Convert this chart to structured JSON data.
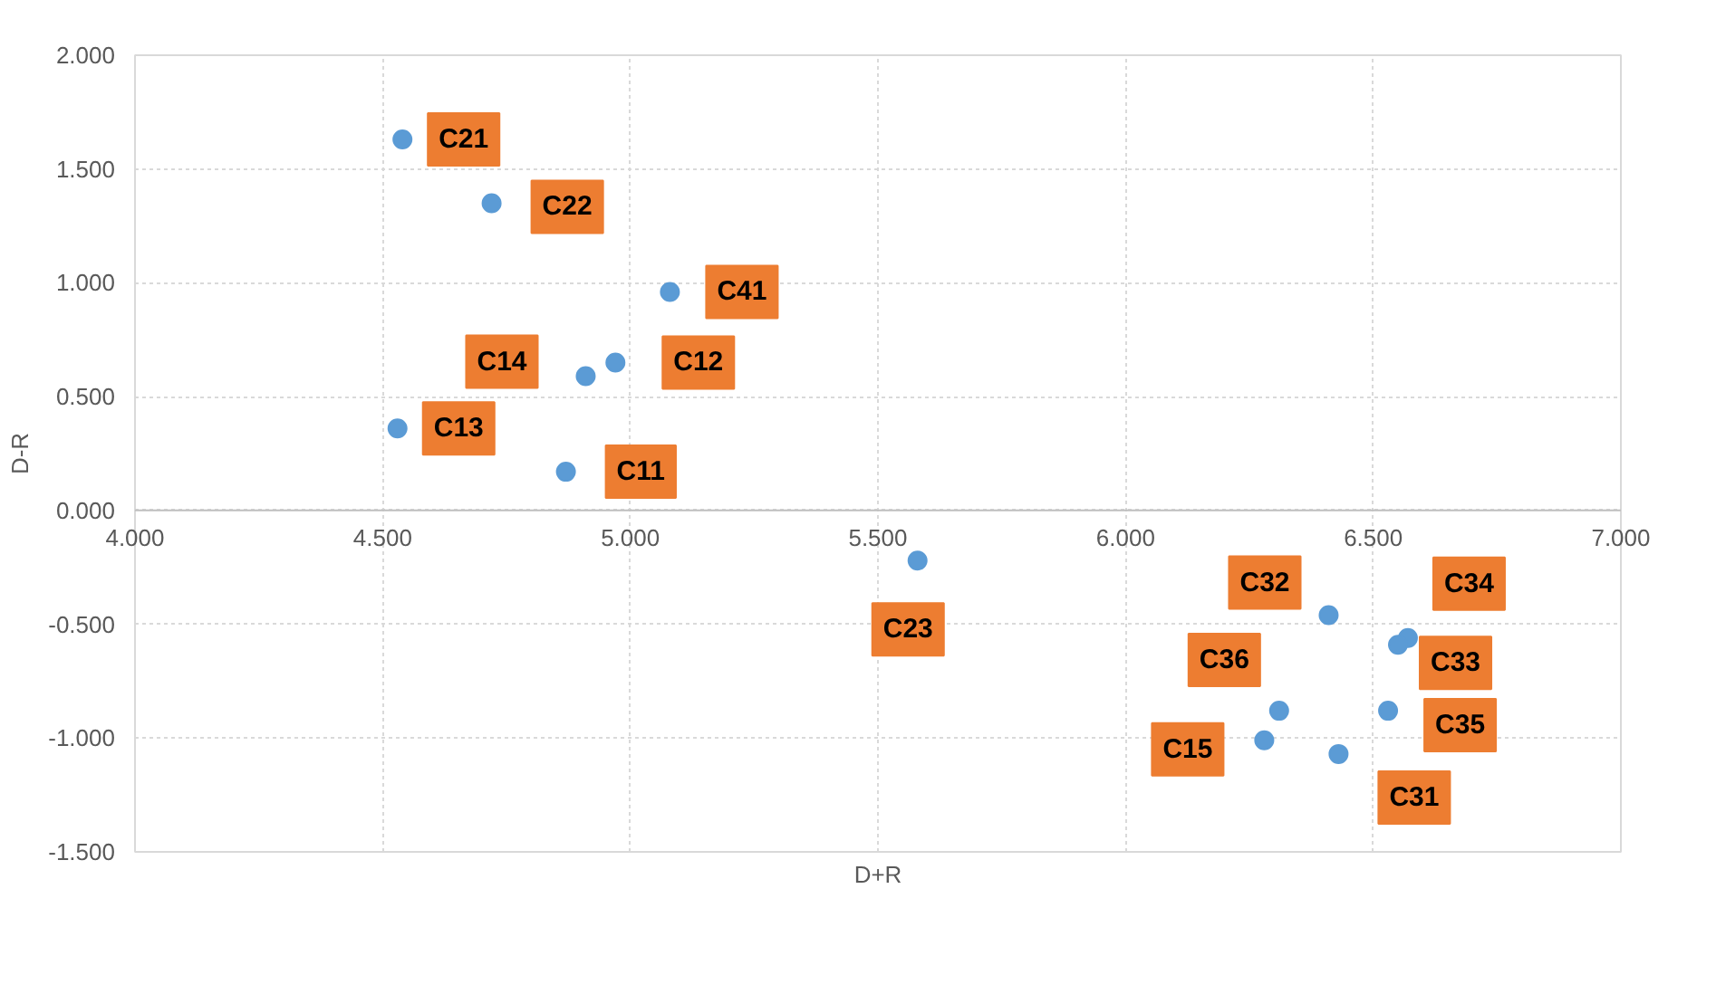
{
  "chart_data": {
    "type": "scatter",
    "xlabel": "D+R",
    "ylabel": "D-R",
    "x": [
      4.54,
      4.72,
      5.08,
      4.91,
      4.97,
      4.53,
      4.87,
      5.58,
      6.41,
      6.57,
      6.55,
      6.31,
      6.53,
      6.28,
      6.43
    ],
    "series": [
      {
        "color": "#5b9bd5",
        "values": [
          1.63,
          1.35,
          0.96,
          0.59,
          0.65,
          0.36,
          0.17,
          -0.22,
          -0.46,
          -0.56,
          -0.59,
          -0.88,
          -0.88,
          -1.01,
          -1.07
        ]
      }
    ],
    "annotations": [
      {
        "text": "C21",
        "x": 4.54,
        "y": 1.63
      },
      {
        "text": "C22",
        "x": 4.72,
        "y": 1.35
      },
      {
        "text": "C41",
        "x": 5.08,
        "y": 0.96
      },
      {
        "text": "C14",
        "x": 4.91,
        "y": 0.59
      },
      {
        "text": "C12",
        "x": 4.97,
        "y": 0.65
      },
      {
        "text": "C13",
        "x": 4.53,
        "y": 0.36
      },
      {
        "text": "C11",
        "x": 4.87,
        "y": 0.17
      },
      {
        "text": "C23",
        "x": 5.58,
        "y": -0.22
      },
      {
        "text": "C32",
        "x": 6.41,
        "y": -0.46
      },
      {
        "text": "C34",
        "x": 6.57,
        "y": -0.56
      },
      {
        "text": "C33",
        "x": 6.55,
        "y": -0.59
      },
      {
        "text": "C36",
        "x": 6.31,
        "y": -0.88
      },
      {
        "text": "C35",
        "x": 6.53,
        "y": -0.88
      },
      {
        "text": "C15",
        "x": 6.28,
        "y": -1.01
      },
      {
        "text": "C31",
        "x": 6.43,
        "y": -1.07
      }
    ],
    "xlim": [
      4,
      7
    ],
    "ylim": [
      -1.5,
      2
    ],
    "xticks": [
      {
        "value": 4,
        "label": "4.000"
      },
      {
        "value": 4.5,
        "label": "4.500"
      },
      {
        "value": 5,
        "label": "5.000"
      },
      {
        "value": 5.5,
        "label": "5.500"
      },
      {
        "value": 6,
        "label": "6.000"
      },
      {
        "value": 6.5,
        "label": "6.500"
      },
      {
        "value": 7,
        "label": "7.000"
      }
    ],
    "yticks": [
      {
        "value": 2,
        "label": "2.000"
      },
      {
        "value": 1.5,
        "label": "1.500"
      },
      {
        "value": 1,
        "label": "1.000"
      },
      {
        "value": 0.5,
        "label": "0.500"
      },
      {
        "value": 0,
        "label": "0.000"
      },
      {
        "value": -0.5,
        "label": "-0.500"
      },
      {
        "value": -1,
        "label": "-1.000"
      },
      {
        "value": -1.5,
        "label": "-1.500"
      }
    ],
    "grid": true,
    "marker": "circle"
  }
}
